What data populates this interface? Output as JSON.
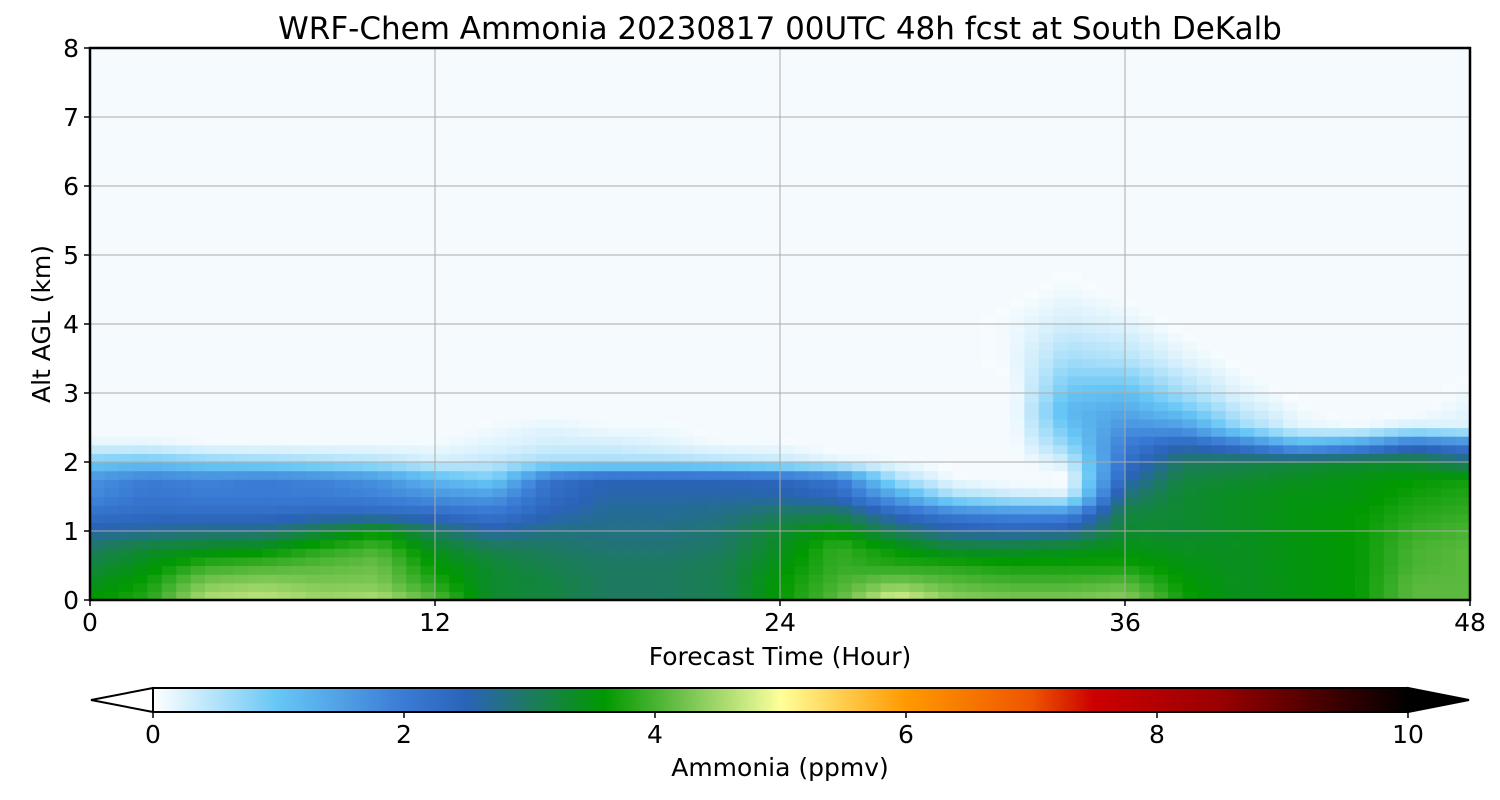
{
  "chart_data": {
    "type": "heatmap",
    "title": "WRF-Chem Ammonia  20230817 00UTC 48h fcst at South DeKalb",
    "xlabel": "Forecast Time (Hour)",
    "ylabel": "Alt AGL (km)",
    "xlim": [
      0,
      48
    ],
    "ylim": [
      0,
      8
    ],
    "x_ticks": [
      "0",
      "12",
      "24",
      "36",
      "48"
    ],
    "y_ticks": [
      "0",
      "1",
      "2",
      "3",
      "4",
      "5",
      "6",
      "7",
      "8"
    ],
    "grid": true,
    "x": [
      0,
      2,
      4,
      6,
      8,
      10,
      12,
      14,
      16,
      18,
      20,
      22,
      24,
      26,
      28,
      30,
      32,
      34,
      36,
      38,
      40,
      42,
      44,
      46,
      48
    ],
    "z": [
      0,
      0.25,
      0.5,
      0.75,
      1.0,
      1.25,
      1.5,
      1.75,
      2.0,
      2.25,
      2.5,
      2.75,
      3.0,
      3.5,
      4.0,
      4.5,
      5.0
    ],
    "values": [
      [
        3.6,
        3.8,
        4.6,
        4.7,
        4.5,
        4.6,
        4.1,
        3.3,
        3.2,
        3.0,
        3.0,
        3.1,
        3.6,
        4.1,
        4.9,
        4.4,
        4.3,
        4.3,
        4.4,
        3.7,
        3.4,
        3.5,
        3.6,
        4.1,
        4.1
      ],
      [
        3.4,
        3.7,
        4.3,
        4.4,
        4.3,
        4.3,
        3.8,
        3.3,
        3.2,
        3.0,
        3.0,
        3.1,
        3.6,
        4.0,
        4.3,
        4.1,
        4.0,
        4.0,
        4.1,
        3.6,
        3.4,
        3.5,
        3.6,
        4.1,
        4.1
      ],
      [
        3.2,
        3.5,
        3.9,
        4.0,
        4.1,
        4.2,
        3.6,
        3.3,
        3.1,
        3.0,
        3.0,
        3.1,
        3.5,
        3.9,
        3.8,
        3.8,
        3.7,
        3.7,
        3.7,
        3.5,
        3.4,
        3.5,
        3.6,
        4.0,
        4.1
      ],
      [
        3.0,
        3.3,
        3.4,
        3.5,
        3.8,
        4.0,
        3.4,
        3.1,
        3.0,
        2.9,
        2.9,
        3.0,
        3.4,
        3.9,
        3.6,
        3.3,
        3.3,
        3.4,
        3.5,
        3.4,
        3.4,
        3.5,
        3.6,
        4.0,
        4.1
      ],
      [
        2.6,
        2.7,
        2.8,
        2.8,
        3.2,
        3.6,
        3.0,
        2.6,
        2.8,
        2.8,
        2.8,
        2.9,
        3.3,
        3.6,
        3.0,
        2.6,
        2.5,
        2.6,
        3.3,
        3.3,
        3.4,
        3.5,
        3.6,
        3.9,
        4.0
      ],
      [
        2.2,
        2.3,
        2.3,
        2.3,
        2.4,
        2.4,
        2.3,
        2.1,
        2.5,
        2.7,
        2.7,
        2.8,
        3.0,
        3.1,
        2.4,
        2.0,
        1.8,
        1.8,
        3.2,
        3.3,
        3.4,
        3.5,
        3.6,
        3.8,
        3.9
      ],
      [
        1.8,
        2.1,
        2.0,
        2.0,
        2.0,
        1.9,
        1.7,
        1.6,
        2.3,
        2.6,
        2.6,
        2.6,
        2.6,
        2.4,
        1.5,
        0.6,
        0.4,
        0.3,
        2.9,
        3.3,
        3.4,
        3.5,
        3.5,
        3.7,
        3.8
      ],
      [
        1.7,
        2.0,
        1.9,
        2.0,
        1.9,
        1.7,
        1.2,
        0.9,
        2.2,
        2.5,
        2.5,
        2.5,
        2.4,
        2.1,
        0.6,
        0.1,
        0.0,
        0.0,
        2.5,
        3.2,
        3.3,
        3.4,
        3.5,
        3.6,
        3.7
      ],
      [
        0.9,
        1.0,
        0.8,
        0.7,
        0.6,
        0.5,
        0.3,
        0.4,
        0.6,
        0.6,
        0.6,
        0.5,
        0.4,
        0.2,
        0.1,
        0.0,
        0.0,
        0.3,
        2.2,
        3.0,
        3.1,
        3.2,
        3.3,
        3.3,
        2.9
      ],
      [
        0.2,
        0.2,
        0.1,
        0.1,
        0.1,
        0.1,
        0.1,
        0.2,
        0.3,
        0.3,
        0.2,
        0.1,
        0.1,
        0.0,
        0.0,
        0.0,
        0.0,
        0.7,
        2.0,
        2.5,
        2.1,
        1.3,
        1.6,
        2.3,
        2.0
      ],
      [
        0.0,
        0.0,
        0.0,
        0.0,
        0.0,
        0.0,
        0.0,
        0.1,
        0.2,
        0.1,
        0.1,
        0.0,
        0.0,
        0.0,
        0.0,
        0.0,
        0.0,
        1.0,
        1.7,
        1.6,
        0.7,
        0.2,
        0.1,
        0.3,
        0.2
      ],
      [
        0.0,
        0.0,
        0.0,
        0.0,
        0.0,
        0.0,
        0.0,
        0.0,
        0.0,
        0.0,
        0.0,
        0.0,
        0.0,
        0.0,
        0.0,
        0.0,
        0.0,
        1.2,
        1.4,
        1.0,
        0.4,
        0.1,
        0.0,
        0.0,
        0.2
      ],
      [
        0.0,
        0.0,
        0.0,
        0.0,
        0.0,
        0.0,
        0.0,
        0.0,
        0.0,
        0.0,
        0.0,
        0.0,
        0.0,
        0.0,
        0.0,
        0.0,
        0.0,
        1.0,
        1.1,
        0.6,
        0.2,
        0.0,
        0.0,
        0.0,
        0.1
      ],
      [
        0.0,
        0.0,
        0.0,
        0.0,
        0.0,
        0.0,
        0.0,
        0.0,
        0.0,
        0.0,
        0.0,
        0.0,
        0.0,
        0.0,
        0.0,
        0.0,
        0.1,
        0.6,
        0.5,
        0.2,
        0.0,
        0.0,
        0.0,
        0.0,
        0.0
      ],
      [
        0.0,
        0.0,
        0.0,
        0.0,
        0.0,
        0.0,
        0.0,
        0.0,
        0.0,
        0.0,
        0.0,
        0.0,
        0.0,
        0.0,
        0.0,
        0.0,
        0.1,
        0.3,
        0.2,
        0.0,
        0.0,
        0.0,
        0.0,
        0.0,
        0.0
      ],
      [
        0.0,
        0.0,
        0.0,
        0.0,
        0.0,
        0.0,
        0.0,
        0.0,
        0.0,
        0.0,
        0.0,
        0.0,
        0.0,
        0.0,
        0.0,
        0.0,
        0.0,
        0.1,
        0.0,
        0.0,
        0.0,
        0.0,
        0.0,
        0.0,
        0.0
      ],
      [
        0.0,
        0.0,
        0.0,
        0.0,
        0.0,
        0.0,
        0.0,
        0.0,
        0.0,
        0.0,
        0.0,
        0.0,
        0.0,
        0.0,
        0.0,
        0.0,
        0.0,
        0.0,
        0.0,
        0.0,
        0.0,
        0.0,
        0.0,
        0.0,
        0.0
      ]
    ],
    "colorbar": {
      "label": "Ammonia  (ppmv)",
      "range": [
        0,
        10
      ],
      "ticks": [
        "0",
        "2",
        "4",
        "6",
        "8",
        "10"
      ],
      "extend": "both",
      "stops": [
        {
          "v": 0.0,
          "c": "#ffffff"
        },
        {
          "v": 1.0,
          "c": "#66c6f5"
        },
        {
          "v": 2.0,
          "c": "#3a7bd5"
        },
        {
          "v": 2.5,
          "c": "#2a63b8"
        },
        {
          "v": 3.0,
          "c": "#1d7a60"
        },
        {
          "v": 3.6,
          "c": "#009900"
        },
        {
          "v": 4.2,
          "c": "#6cc04a"
        },
        {
          "v": 4.8,
          "c": "#d6ef8a"
        },
        {
          "v": 5.0,
          "c": "#ffff99"
        },
        {
          "v": 6.0,
          "c": "#ff9900"
        },
        {
          "v": 7.0,
          "c": "#ee5500"
        },
        {
          "v": 7.5,
          "c": "#cc0000"
        },
        {
          "v": 8.5,
          "c": "#990000"
        },
        {
          "v": 9.5,
          "c": "#330000"
        },
        {
          "v": 10.0,
          "c": "#000000"
        }
      ]
    }
  }
}
